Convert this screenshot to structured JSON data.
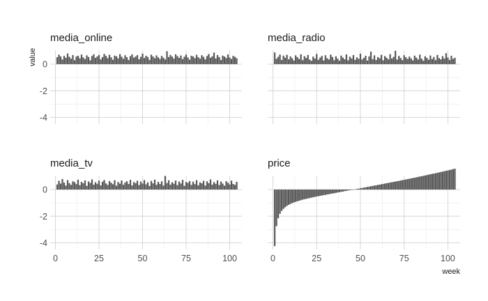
{
  "chart_data": {
    "type": "bar",
    "xlabel": "week",
    "ylabel": "value",
    "xlim": [
      -3,
      107
    ],
    "ylim": [
      -4.5,
      1.05
    ],
    "x_ticks": [
      0,
      25,
      50,
      75,
      100
    ],
    "y_ticks": [
      0,
      -2,
      -4
    ],
    "grid": true,
    "bar_color": "#595959",
    "weeks": [
      1,
      2,
      3,
      4,
      5,
      6,
      7,
      8,
      9,
      10,
      11,
      12,
      13,
      14,
      15,
      16,
      17,
      18,
      19,
      20,
      21,
      22,
      23,
      24,
      25,
      26,
      27,
      28,
      29,
      30,
      31,
      32,
      33,
      34,
      35,
      36,
      37,
      38,
      39,
      40,
      41,
      42,
      43,
      44,
      45,
      46,
      47,
      48,
      49,
      50,
      51,
      52,
      53,
      54,
      55,
      56,
      57,
      58,
      59,
      60,
      61,
      62,
      63,
      64,
      65,
      66,
      67,
      68,
      69,
      70,
      71,
      72,
      73,
      74,
      75,
      76,
      77,
      78,
      79,
      80,
      81,
      82,
      83,
      84,
      85,
      86,
      87,
      88,
      89,
      90,
      91,
      92,
      93,
      94,
      95,
      96,
      97,
      98,
      99,
      100,
      101,
      102,
      103,
      104
    ],
    "panels": [
      {
        "name": "media_online",
        "values": [
          0.52,
          0.71,
          0.58,
          0.35,
          0.62,
          0.48,
          0.8,
          0.55,
          0.41,
          0.68,
          0.3,
          0.57,
          0.63,
          0.44,
          0.72,
          0.5,
          0.38,
          0.66,
          0.54,
          0.29,
          0.61,
          0.74,
          0.47,
          0.58,
          0.69,
          0.36,
          0.53,
          0.77,
          0.62,
          0.45,
          0.7,
          0.51,
          0.33,
          0.64,
          0.59,
          0.43,
          0.75,
          0.56,
          0.4,
          0.67,
          0.52,
          0.31,
          0.6,
          0.73,
          0.49,
          0.57,
          0.68,
          0.37,
          0.55,
          0.79,
          0.46,
          0.63,
          0.54,
          0.32,
          0.71,
          0.58,
          0.44,
          0.66,
          0.51,
          0.39,
          0.62,
          0.48,
          0.35,
          0.97,
          0.53,
          0.69,
          0.57,
          0.42,
          0.74,
          0.6,
          0.47,
          0.65,
          0.38,
          0.56,
          0.72,
          0.5,
          0.34,
          0.63,
          0.58,
          0.45,
          0.7,
          0.52,
          0.41,
          0.67,
          0.55,
          0.36,
          0.61,
          0.76,
          0.48,
          0.59,
          0.87,
          0.43,
          0.68,
          0.53,
          0.31,
          0.64,
          0.57,
          0.46,
          0.73,
          0.5,
          0.39,
          0.62,
          0.55,
          0.44
        ]
      },
      {
        "name": "media_radio",
        "values": [
          0.88,
          0.4,
          0.55,
          0.72,
          0.31,
          0.64,
          0.48,
          0.7,
          0.36,
          0.58,
          0.44,
          0.27,
          0.66,
          0.52,
          0.38,
          0.74,
          0.3,
          0.6,
          0.46,
          0.69,
          0.34,
          0.25,
          0.57,
          0.42,
          0.76,
          0.33,
          0.5,
          0.62,
          0.28,
          0.67,
          0.45,
          0.35,
          0.71,
          0.54,
          0.3,
          0.59,
          0.41,
          0.26,
          0.64,
          0.49,
          0.37,
          0.73,
          0.29,
          0.56,
          0.43,
          0.68,
          0.32,
          0.51,
          0.4,
          0.78,
          0.35,
          0.47,
          0.63,
          0.27,
          0.58,
          0.94,
          0.38,
          0.66,
          0.31,
          0.53,
          0.44,
          0.7,
          0.29,
          0.61,
          0.48,
          0.36,
          0.75,
          0.42,
          0.55,
          1.0,
          0.34,
          0.62,
          0.46,
          0.3,
          0.67,
          0.51,
          0.39,
          0.57,
          0.43,
          0.28,
          0.64,
          0.49,
          0.35,
          0.71,
          0.41,
          0.26,
          0.59,
          0.47,
          0.33,
          0.65,
          0.38,
          0.54,
          0.3,
          0.69,
          0.45,
          0.36,
          0.6,
          0.42,
          0.82,
          0.5,
          0.31,
          0.63,
          0.4,
          0.48
        ]
      },
      {
        "name": "media_tv",
        "values": [
          0.38,
          0.66,
          0.45,
          0.79,
          0.52,
          0.3,
          0.71,
          0.48,
          0.35,
          0.62,
          0.56,
          0.41,
          0.74,
          0.33,
          0.58,
          0.47,
          0.69,
          0.28,
          0.61,
          0.5,
          0.76,
          0.37,
          0.55,
          0.43,
          0.67,
          0.32,
          0.59,
          0.72,
          0.46,
          0.35,
          0.64,
          0.51,
          0.4,
          0.7,
          0.29,
          0.57,
          0.44,
          0.68,
          0.36,
          0.53,
          0.63,
          0.42,
          0.73,
          0.31,
          0.56,
          0.48,
          0.66,
          0.34,
          0.6,
          0.45,
          0.71,
          0.39,
          0.54,
          0.27,
          0.65,
          0.47,
          0.75,
          0.36,
          0.58,
          0.42,
          0.62,
          0.3,
          1.02,
          0.49,
          0.7,
          0.37,
          0.55,
          0.44,
          0.68,
          0.33,
          0.61,
          0.46,
          0.73,
          0.28,
          0.57,
          0.5,
          0.64,
          0.35,
          0.59,
          0.41,
          0.71,
          0.32,
          0.54,
          0.47,
          0.66,
          0.3,
          0.62,
          0.48,
          0.76,
          0.37,
          0.56,
          0.43,
          0.69,
          0.34,
          0.6,
          0.45,
          0.29,
          0.63,
          0.51,
          0.38,
          0.67,
          0.42,
          0.35,
          0.58
        ]
      },
      {
        "name": "price",
        "values": [
          -4.25,
          -2.75,
          -2.15,
          -1.82,
          -1.6,
          -1.45,
          -1.33,
          -1.23,
          -1.15,
          -1.08,
          -1.02,
          -0.97,
          -0.92,
          -0.88,
          -0.84,
          -0.8,
          -0.76,
          -0.73,
          -0.7,
          -0.67,
          -0.64,
          -0.61,
          -0.58,
          -0.55,
          -0.52,
          -0.5,
          -0.47,
          -0.45,
          -0.42,
          -0.4,
          -0.37,
          -0.35,
          -0.32,
          -0.3,
          -0.28,
          -0.25,
          -0.22,
          -0.2,
          -0.17,
          -0.15,
          -0.12,
          -0.1,
          -0.07,
          -0.05,
          -0.03,
          0.0,
          0.02,
          0.05,
          0.07,
          0.1,
          0.12,
          0.15,
          0.17,
          0.2,
          0.22,
          0.25,
          0.27,
          0.3,
          0.32,
          0.35,
          0.37,
          0.4,
          0.42,
          0.45,
          0.48,
          0.5,
          0.53,
          0.55,
          0.58,
          0.6,
          0.63,
          0.65,
          0.68,
          0.71,
          0.73,
          0.76,
          0.79,
          0.81,
          0.84,
          0.87,
          0.89,
          0.92,
          0.95,
          0.98,
          1.0,
          1.03,
          1.06,
          1.09,
          1.12,
          1.15,
          1.18,
          1.2,
          1.23,
          1.26,
          1.29,
          1.32,
          1.35,
          1.38,
          1.41,
          1.44,
          1.47,
          1.5,
          1.54,
          1.57
        ]
      }
    ]
  }
}
